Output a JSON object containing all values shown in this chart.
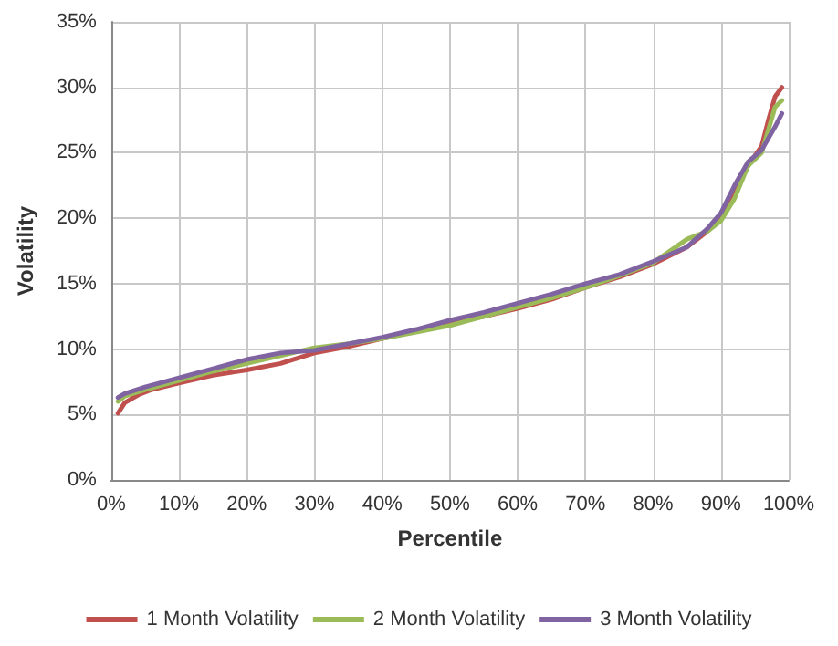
{
  "chart_data": {
    "type": "line",
    "xlabel": "Percentile",
    "ylabel": "Volatility",
    "grid": true,
    "legend": "bottom",
    "marker": "none",
    "line_style": "solid",
    "xlim": [
      0,
      100
    ],
    "xticks": [
      {
        "value": 0,
        "label": "0%"
      },
      {
        "value": 10,
        "label": "10%"
      },
      {
        "value": 20,
        "label": "20%"
      },
      {
        "value": 30,
        "label": "30%"
      },
      {
        "value": 40,
        "label": "40%"
      },
      {
        "value": 50,
        "label": "50%"
      },
      {
        "value": 60,
        "label": "60%"
      },
      {
        "value": 70,
        "label": "70%"
      },
      {
        "value": 80,
        "label": "80%"
      },
      {
        "value": 90,
        "label": "90%"
      },
      {
        "value": 100,
        "label": "100%"
      }
    ],
    "ylim": [
      0,
      35
    ],
    "yticks": [
      {
        "value": 0,
        "label": "0%"
      },
      {
        "value": 5,
        "label": "5%"
      },
      {
        "value": 10,
        "label": "10%"
      },
      {
        "value": 15,
        "label": "15%"
      },
      {
        "value": 20,
        "label": "20%"
      },
      {
        "value": 25,
        "label": "25%"
      },
      {
        "value": 30,
        "label": "30%"
      },
      {
        "value": 35,
        "label": "35%"
      }
    ],
    "series": [
      {
        "name": "1 Month Volatility",
        "color": "#c0504d",
        "x": [
          1,
          2,
          4,
          6,
          10,
          15,
          20,
          25,
          30,
          35,
          40,
          45,
          50,
          55,
          60,
          65,
          70,
          75,
          80,
          85,
          88,
          90,
          92,
          94,
          96,
          97,
          98,
          99
        ],
        "values": [
          5.1,
          5.9,
          6.5,
          6.9,
          7.4,
          8.0,
          8.4,
          8.9,
          9.7,
          10.2,
          10.8,
          11.4,
          12.0,
          12.5,
          13.1,
          13.8,
          14.7,
          15.5,
          16.5,
          17.8,
          19.0,
          20.0,
          22.0,
          24.0,
          25.5,
          27.5,
          29.3,
          30.0
        ]
      },
      {
        "name": "2 Month Volatility",
        "color": "#9bbb59",
        "x": [
          1,
          2,
          5,
          10,
          15,
          20,
          25,
          30,
          35,
          40,
          45,
          50,
          55,
          60,
          65,
          70,
          75,
          80,
          85,
          88,
          90,
          92,
          94,
          96,
          98,
          99
        ],
        "values": [
          6.0,
          6.4,
          6.9,
          7.6,
          8.3,
          8.9,
          9.5,
          10.1,
          10.4,
          10.8,
          11.3,
          11.8,
          12.5,
          13.2,
          13.9,
          14.7,
          15.6,
          16.6,
          18.4,
          19.0,
          19.8,
          21.5,
          24.0,
          25.0,
          28.5,
          29.0
        ]
      },
      {
        "name": "3 Month Volatility",
        "color": "#8064a2",
        "x": [
          1,
          2,
          5,
          10,
          15,
          20,
          25,
          30,
          35,
          40,
          45,
          50,
          55,
          60,
          65,
          70,
          75,
          80,
          85,
          88,
          90,
          92,
          94,
          96,
          98,
          99
        ],
        "values": [
          6.3,
          6.6,
          7.1,
          7.8,
          8.5,
          9.2,
          9.7,
          9.9,
          10.4,
          10.9,
          11.5,
          12.2,
          12.8,
          13.5,
          14.2,
          15.0,
          15.7,
          16.7,
          17.8,
          19.2,
          20.4,
          22.5,
          24.3,
          25.2,
          27.0,
          28.0
        ]
      }
    ]
  }
}
